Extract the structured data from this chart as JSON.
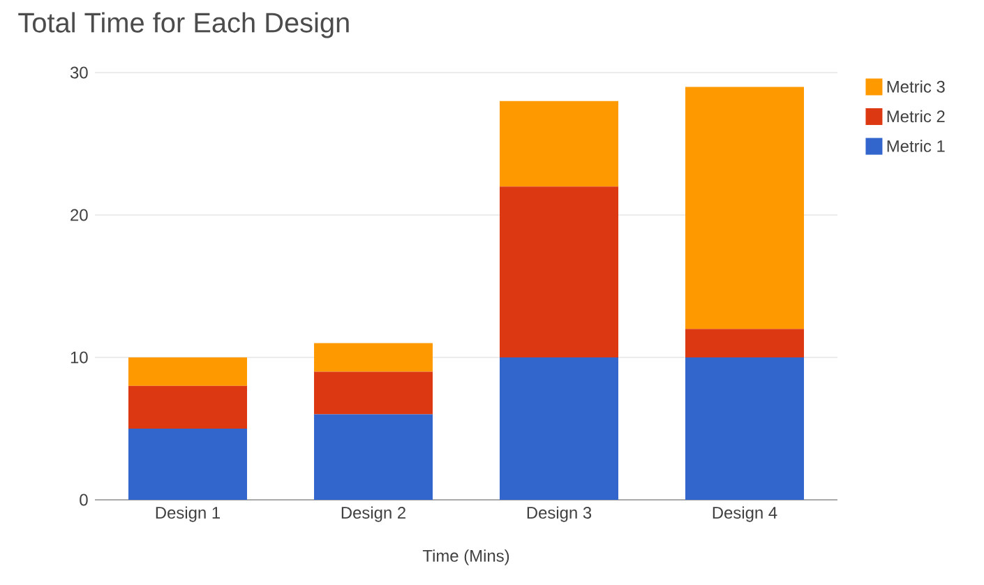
{
  "chart_data": {
    "type": "bar",
    "title": "Total Time for Each Design",
    "xlabel": "Time (Mins)",
    "categories": [
      "Design 1",
      "Design 2",
      "Design 3",
      "Design 4"
    ],
    "stacked": true,
    "series": [
      {
        "name": "Metric 1",
        "color": "#3366cc",
        "values": [
          5,
          6,
          10,
          10
        ]
      },
      {
        "name": "Metric 2",
        "color": "#dc3912",
        "values": [
          3,
          3,
          12,
          2
        ]
      },
      {
        "name": "Metric 3",
        "color": "#ff9900",
        "values": [
          2,
          2,
          6,
          17
        ]
      }
    ],
    "ylim": [
      0,
      30
    ],
    "yticks": [
      0,
      10,
      20,
      30
    ],
    "grid": "y",
    "legend": "top right"
  }
}
